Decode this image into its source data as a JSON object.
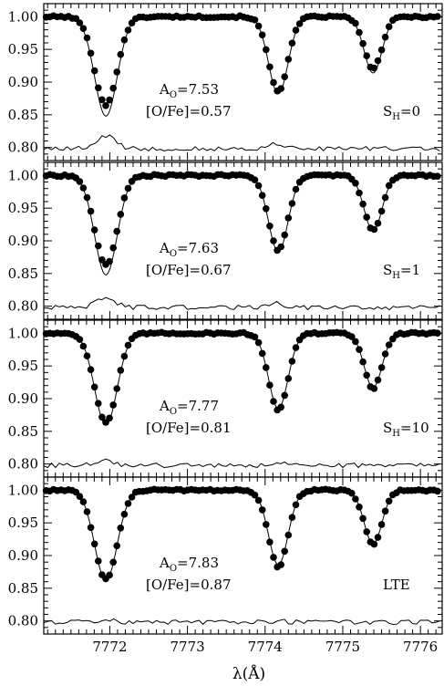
{
  "chart_data": {
    "type": "line",
    "xlabel": "λ(Å)",
    "xlim": [
      7771.15,
      7776.28
    ],
    "x_ticks": [
      7772,
      7773,
      7774,
      7775,
      7776
    ],
    "x_tick_labels": [
      "7772",
      "7773",
      "7774",
      "7775",
      "7776"
    ],
    "ylim": [
      0.78,
      1.02
    ],
    "y_ticks": [
      0.8,
      0.85,
      0.9,
      0.95,
      1.0
    ],
    "y_tick_labels": [
      "0.80",
      "0.85",
      "0.90",
      "0.95",
      "1.00"
    ],
    "line_centers": [
      7771.95,
      7774.17,
      7775.39
    ],
    "panels": [
      {
        "abundance": "A",
        "abundance_sub": "O",
        "abundance_value": "=7.53",
        "ratio": "[O/Fe]=0.57",
        "label": "S",
        "label_sub": "H",
        "label_value": "=0",
        "observed_depths": [
          0.135,
          0.113,
          0.079
        ],
        "model_depths": [
          0.152,
          0.118,
          0.086
        ],
        "residual_peak": 0.02
      },
      {
        "abundance": "A",
        "abundance_sub": "O",
        "abundance_value": "=7.63",
        "ratio": "[O/Fe]=0.67",
        "label": "S",
        "label_sub": "H",
        "label_value": "=1",
        "observed_depths": [
          0.137,
          0.114,
          0.084
        ],
        "model_depths": [
          0.152,
          0.117,
          0.085
        ],
        "residual_peak": 0.015
      },
      {
        "abundance": "A",
        "abundance_sub": "O",
        "abundance_value": "=7.77",
        "ratio": "[O/Fe]=0.81",
        "label": "S",
        "label_sub": "H",
        "label_value": "=10",
        "observed_depths": [
          0.136,
          0.117,
          0.084
        ],
        "model_depths": [
          0.14,
          0.115,
          0.083
        ],
        "residual_peak": 0.006
      },
      {
        "abundance": "A",
        "abundance_sub": "O",
        "abundance_value": "=7.83",
        "ratio": "[O/Fe]=0.87",
        "label": "LTE",
        "label_sub": "",
        "label_value": "",
        "observed_depths": [
          0.137,
          0.117,
          0.083
        ],
        "model_depths": [
          0.138,
          0.114,
          0.082
        ],
        "residual_peak": 0.004
      }
    ]
  }
}
